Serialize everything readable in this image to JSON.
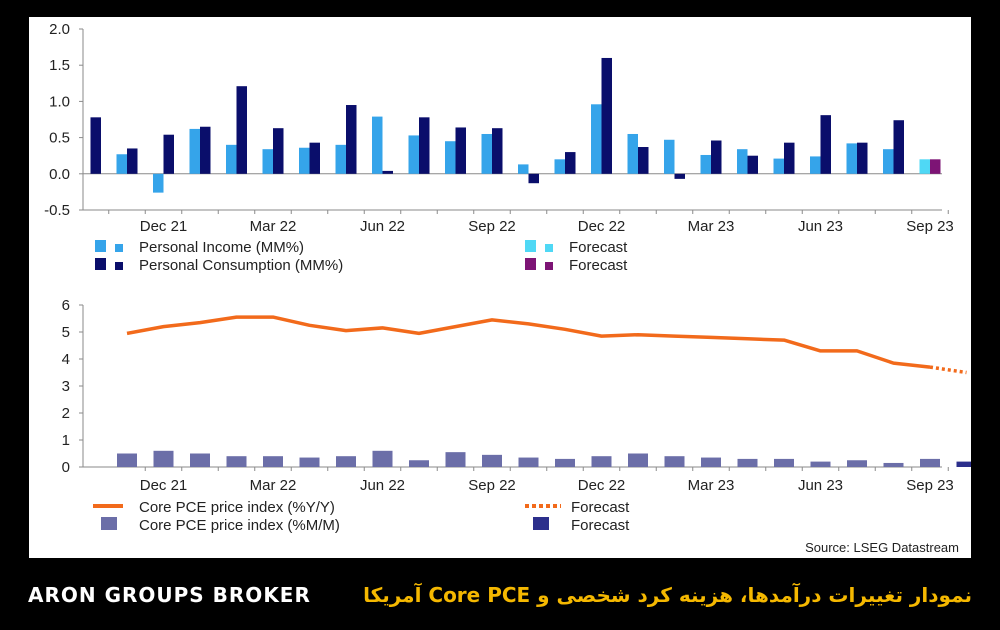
{
  "colors": {
    "income": "#35a4ea",
    "consumption": "#0a0e6b",
    "income_forecast": "#4fd8f5",
    "consumption_forecast": "#7d1475",
    "core_yy": "#f26a1b",
    "core_mm": "#6b6ea8",
    "core_mm_forecast": "#2c2f8c",
    "axis": "#8a8a8a",
    "text": "#222222",
    "footer_bg": "#000000",
    "footer_brand": "#ffffff",
    "footer_caption": "#f5b800"
  },
  "chart_data": [
    {
      "type": "bar",
      "x_tick_labels": [
        "Dec 21",
        "Mar 22",
        "Jun 22",
        "Sep 22",
        "Dec 22",
        "Mar 23",
        "Jun 23",
        "Sep 23"
      ],
      "categories": [
        "Oct 21",
        "Nov 21",
        "Dec 21",
        "Jan 22",
        "Feb 22",
        "Mar 22",
        "Apr 22",
        "May 22",
        "Jun 22",
        "Jul 22",
        "Aug 22",
        "Sep 22",
        "Oct 22",
        "Nov 22",
        "Dec 22",
        "Jan 23",
        "Feb 23",
        "Mar 23",
        "Apr 23",
        "May 23",
        "Jun 23",
        "Jul 23",
        "Aug 23",
        "Sep 23",
        "Oct 23"
      ],
      "series": [
        {
          "name": "Personal Income (MM%)",
          "values": [
            null,
            0.27,
            -0.26,
            0.62,
            0.4,
            0.34,
            0.36,
            0.4,
            0.79,
            0.53,
            0.45,
            0.55,
            0.13,
            0.2,
            0.96,
            0.55,
            0.47,
            0.26,
            0.34,
            0.21,
            0.24,
            0.42,
            0.34,
            null,
            null
          ]
        },
        {
          "name": "Personal Consumption (MM%)",
          "values": [
            0.78,
            0.35,
            0.54,
            0.65,
            1.21,
            0.63,
            0.43,
            0.95,
            0.04,
            0.78,
            0.64,
            0.63,
            -0.13,
            0.3,
            1.6,
            0.37,
            -0.07,
            0.46,
            0.25,
            0.43,
            0.81,
            0.43,
            0.74,
            null,
            null
          ]
        },
        {
          "name": "Forecast",
          "values": [
            null,
            null,
            null,
            null,
            null,
            null,
            null,
            null,
            null,
            null,
            null,
            null,
            null,
            null,
            null,
            null,
            null,
            null,
            null,
            null,
            null,
            null,
            null,
            0.2,
            null
          ]
        },
        {
          "name": "Forecast",
          "values": [
            null,
            null,
            null,
            null,
            null,
            null,
            null,
            null,
            null,
            null,
            null,
            null,
            null,
            null,
            null,
            null,
            null,
            null,
            null,
            null,
            null,
            null,
            null,
            0.2,
            null
          ]
        }
      ],
      "y_ticks": [
        "2.0",
        "1.5",
        "1.0",
        "0.5",
        "0.0",
        "-0.5"
      ],
      "ylim": [
        -0.5,
        2.0
      ],
      "legend": [
        {
          "label": "Personal Income (MM%)",
          "kind": "bar",
          "colors": [
            "#35a4ea",
            "#35a4ea"
          ]
        },
        {
          "label": "Forecast",
          "kind": "bar",
          "colors": [
            "#4fd8f5",
            "#4fd8f5"
          ]
        },
        {
          "label": "Personal Consumption (MM%)",
          "kind": "bar",
          "colors": [
            "#0a0e6b",
            "#0a0e6b"
          ]
        },
        {
          "label": "Forecast",
          "kind": "bar",
          "colors": [
            "#7d1475",
            "#7d1475"
          ]
        }
      ],
      "legend_placement": "bottom",
      "grid": false
    },
    {
      "type": "line",
      "x_tick_labels": [
        "Dec 21",
        "Mar 22",
        "Jun 22",
        "Sep 22",
        "Dec 22",
        "Mar 23",
        "Jun 23",
        "Sep 23"
      ],
      "categories": [
        "Nov 21",
        "Dec 21",
        "Jan 22",
        "Feb 22",
        "Mar 22",
        "Apr 22",
        "May 22",
        "Jun 22",
        "Jul 22",
        "Aug 22",
        "Sep 22",
        "Oct 22",
        "Nov 22",
        "Dec 22",
        "Jan 23",
        "Feb 23",
        "Mar 23",
        "Apr 23",
        "May 23",
        "Jun 23",
        "Jul 23",
        "Aug 23",
        "Sep 23",
        "Oct 23"
      ],
      "series": [
        {
          "name": "Core PCE price index (%Y/Y)",
          "kind": "line",
          "values": [
            4.95,
            5.2,
            5.35,
            5.55,
            5.55,
            5.25,
            5.05,
            5.15,
            4.95,
            5.2,
            5.45,
            5.3,
            5.1,
            4.85,
            4.9,
            4.85,
            4.8,
            4.75,
            4.7,
            4.3,
            4.3,
            3.85,
            3.7,
            null
          ]
        },
        {
          "name": "Forecast",
          "kind": "line-dotted",
          "values": [
            null,
            null,
            null,
            null,
            null,
            null,
            null,
            null,
            null,
            null,
            null,
            null,
            null,
            null,
            null,
            null,
            null,
            null,
            null,
            null,
            null,
            null,
            3.7,
            3.5
          ]
        },
        {
          "name": "Core PCE price index (%M/M)",
          "kind": "bar",
          "values": [
            0.5,
            0.6,
            0.5,
            0.4,
            0.4,
            0.35,
            0.4,
            0.6,
            0.25,
            0.55,
            0.45,
            0.35,
            0.3,
            0.4,
            0.5,
            0.4,
            0.35,
            0.3,
            0.3,
            0.2,
            0.25,
            0.15,
            0.3,
            null
          ]
        },
        {
          "name": "Forecast",
          "kind": "bar",
          "values": [
            null,
            null,
            null,
            null,
            null,
            null,
            null,
            null,
            null,
            null,
            null,
            null,
            null,
            null,
            null,
            null,
            null,
            null,
            null,
            null,
            null,
            null,
            null,
            0.2
          ]
        }
      ],
      "y_ticks": [
        "6",
        "5",
        "4",
        "3",
        "2",
        "1",
        "0"
      ],
      "ylim": [
        0,
        6
      ],
      "legend": [
        {
          "label": "Core PCE price index (%Y/Y)",
          "kind": "line",
          "color": "#f26a1b"
        },
        {
          "label": "Forecast",
          "kind": "dotted",
          "color": "#f26a1b"
        },
        {
          "label": "Core PCE price index (%M/M)",
          "kind": "bar",
          "color": "#6b6ea8"
        },
        {
          "label": "Forecast",
          "kind": "bar",
          "color": "#2c2f8c"
        }
      ],
      "legend_placement": "bottom",
      "grid": false
    }
  ],
  "source": "Source: LSEG Datastream",
  "footer": {
    "brand": "ARON GROUPS BROKER",
    "caption": "نمودار تغییرات درآمدها، هزینه کرد شخصی و Core PCE آمریکا"
  }
}
